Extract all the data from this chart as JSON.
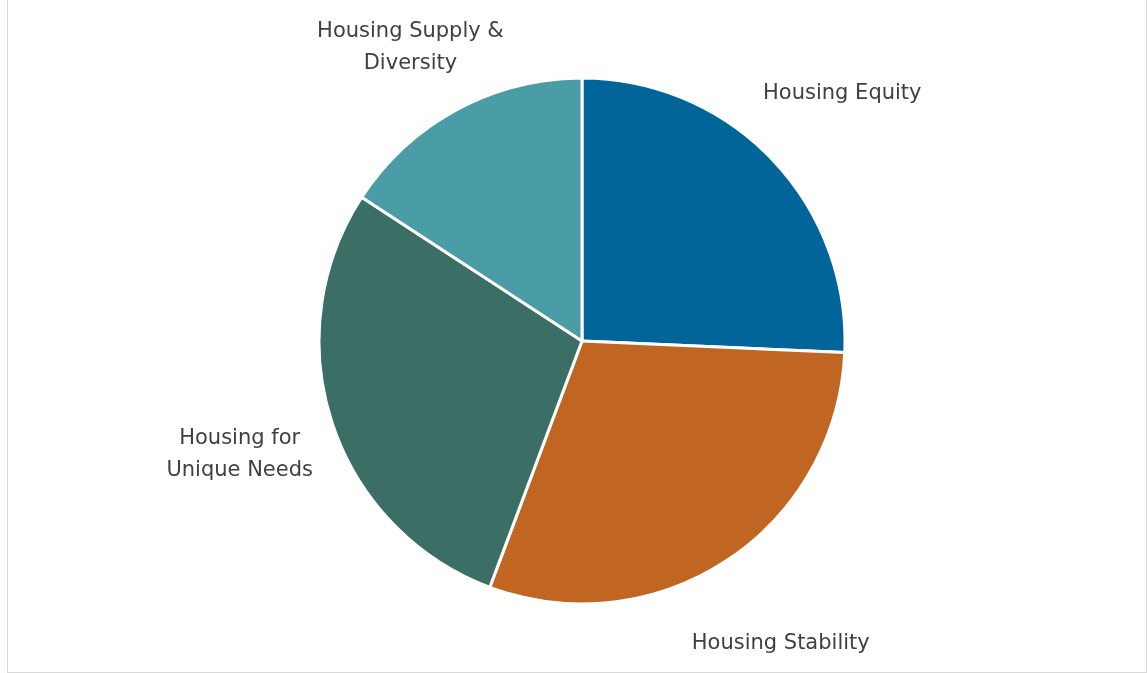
{
  "chart_data": {
    "type": "pie",
    "categories": [
      "Housing Equity",
      "Housing Stability",
      "Housing for Unique Needs",
      "Housing Supply & Diversity"
    ],
    "values": [
      25.7,
      30.0,
      28.5,
      15.8
    ],
    "colors": [
      "#02659a",
      "#c06622",
      "#3b6e64",
      "#4a9da6"
    ]
  }
}
